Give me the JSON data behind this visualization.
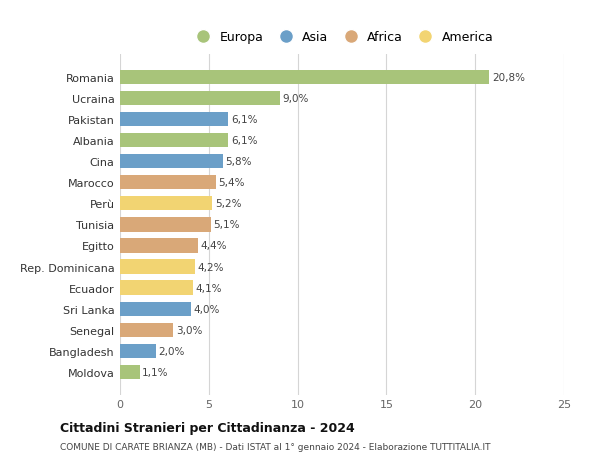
{
  "countries": [
    "Moldova",
    "Bangladesh",
    "Senegal",
    "Sri Lanka",
    "Ecuador",
    "Rep. Dominicana",
    "Egitto",
    "Tunisia",
    "Perù",
    "Marocco",
    "Cina",
    "Albania",
    "Pakistan",
    "Ucraina",
    "Romania"
  ],
  "values": [
    1.1,
    2.0,
    3.0,
    4.0,
    4.1,
    4.2,
    4.4,
    5.1,
    5.2,
    5.4,
    5.8,
    6.1,
    6.1,
    9.0,
    20.8
  ],
  "labels": [
    "1,1%",
    "2,0%",
    "3,0%",
    "4,0%",
    "4,1%",
    "4,2%",
    "4,4%",
    "5,1%",
    "5,2%",
    "5,4%",
    "5,8%",
    "6,1%",
    "6,1%",
    "9,0%",
    "20,8%"
  ],
  "continents": [
    "Europa",
    "Asia",
    "Africa",
    "Asia",
    "America",
    "America",
    "Africa",
    "Africa",
    "America",
    "Africa",
    "Asia",
    "Europa",
    "Asia",
    "Europa",
    "Europa"
  ],
  "colors": {
    "Europa": "#a8c47a",
    "Asia": "#6b9fc8",
    "Africa": "#d9a878",
    "America": "#f2d472"
  },
  "legend_order": [
    "Europa",
    "Asia",
    "Africa",
    "America"
  ],
  "title": "Cittadini Stranieri per Cittadinanza - 2024",
  "subtitle": "COMUNE DI CARATE BRIANZA (MB) - Dati ISTAT al 1° gennaio 2024 - Elaborazione TUTTITALIA.IT",
  "xlim": [
    0,
    25
  ],
  "xticks": [
    0,
    5,
    10,
    15,
    20,
    25
  ],
  "bg_color": "#ffffff",
  "grid_color": "#d5d5d5",
  "bar_height": 0.68
}
